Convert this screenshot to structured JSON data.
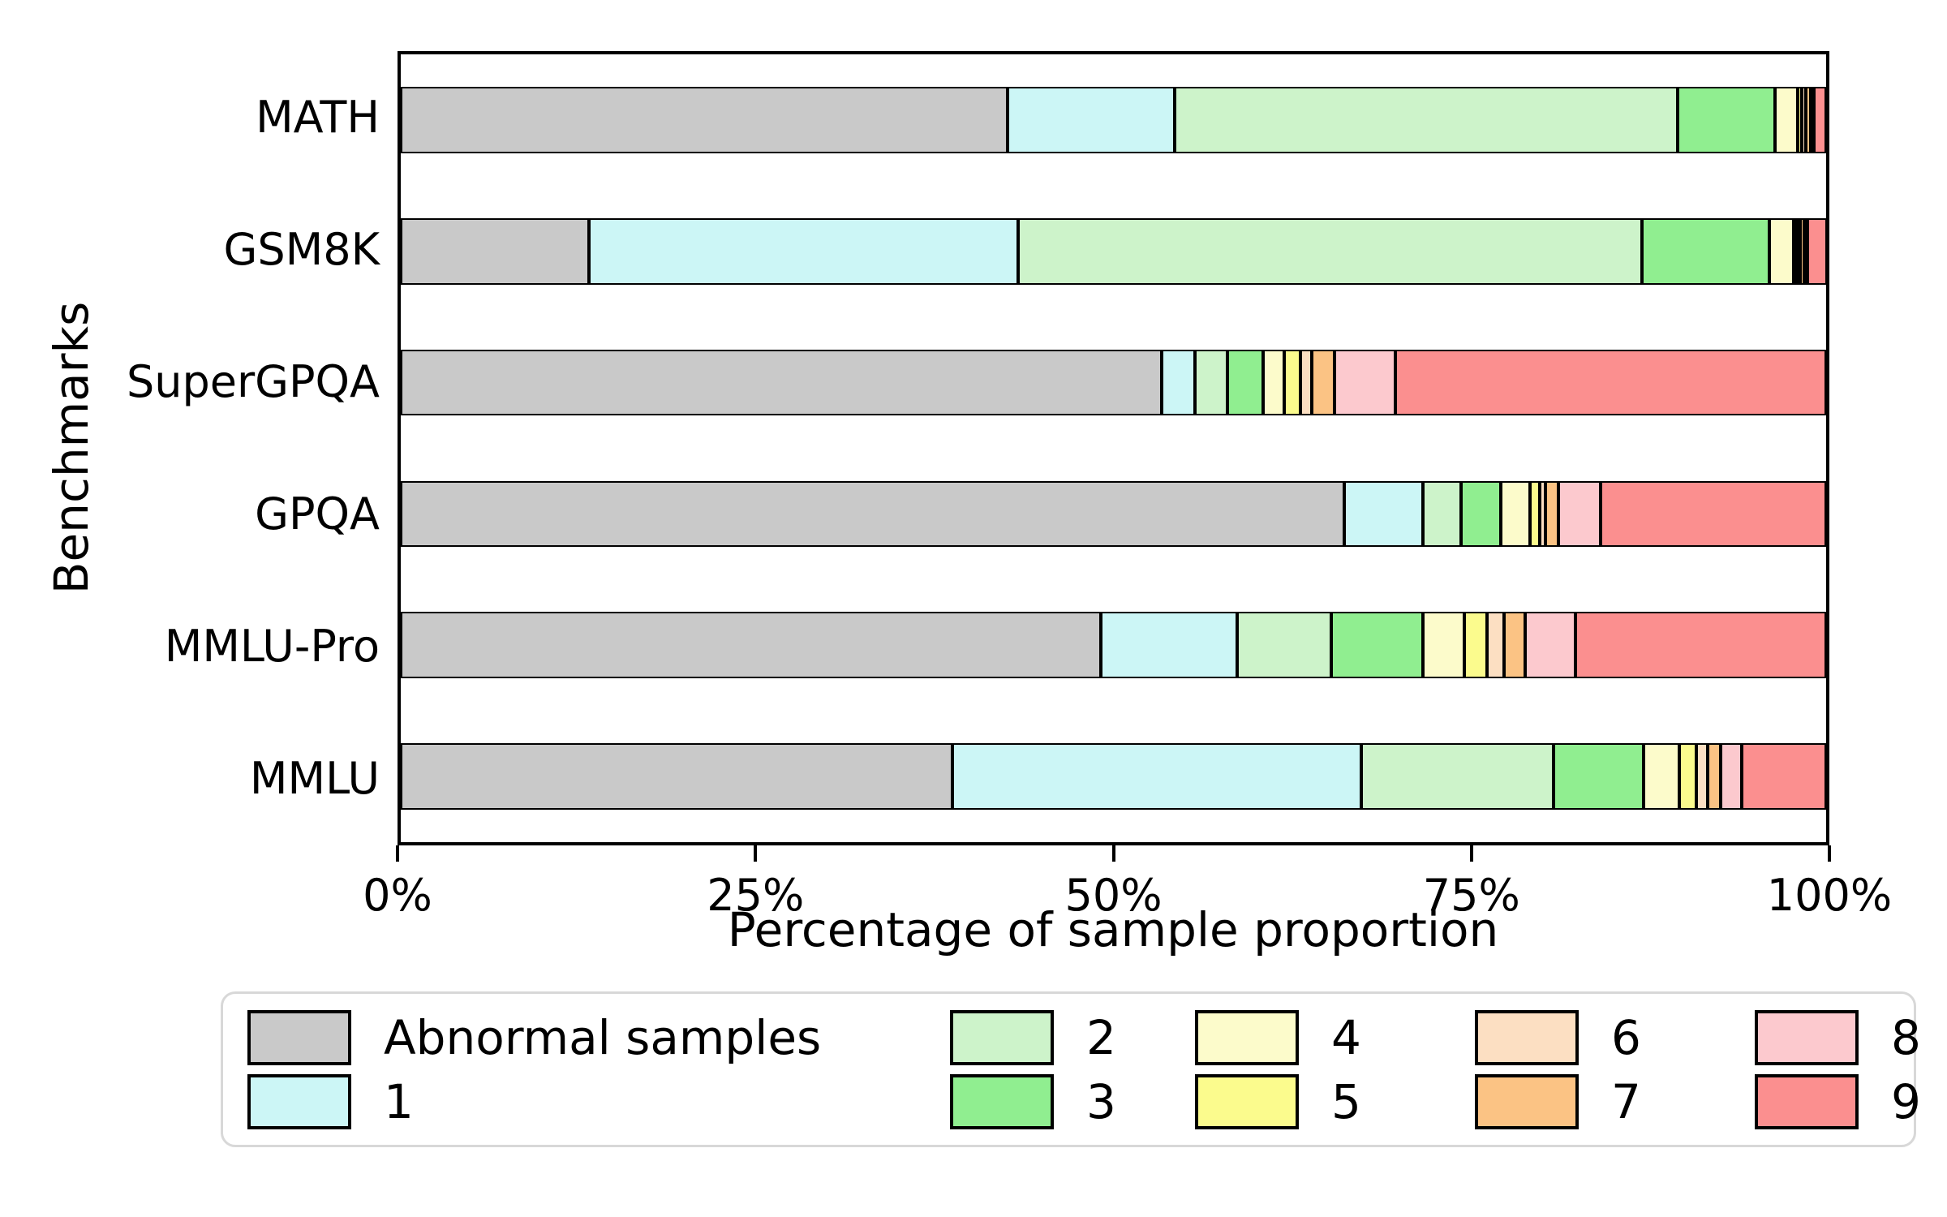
{
  "chart_data": {
    "type": "bar",
    "subtype": "horizontal-stacked",
    "xlabel": "Percentage of sample proportion",
    "ylabel": "Benchmarks",
    "xlim": [
      0,
      100
    ],
    "x_ticks": [
      "0%",
      "25%",
      "50%",
      "75%",
      "100%"
    ],
    "grid": false,
    "legend_position": "bottom",
    "legend_fill_order": "column-major-2-rows",
    "bar_edge_color": "#000000",
    "categories": [
      "MATH",
      "GSM8K",
      "SuperGPQA",
      "GPQA",
      "MMLU-Pro",
      "MMLU"
    ],
    "series": [
      {
        "name": "Abnormal samples",
        "color": "#C9C9C9",
        "values": [
          42.6,
          13.2,
          53.4,
          66.2,
          49.1,
          38.7
        ]
      },
      {
        "name": "1",
        "color": "#CCF6F6",
        "values": [
          11.7,
          30.1,
          2.3,
          5.5,
          9.6,
          28.7
        ]
      },
      {
        "name": "2",
        "color": "#CDF3CA",
        "values": [
          35.3,
          43.8,
          2.3,
          2.7,
          6.6,
          13.5
        ]
      },
      {
        "name": "3",
        "color": "#90EE90",
        "values": [
          6.8,
          8.9,
          2.5,
          2.8,
          6.4,
          6.3
        ]
      },
      {
        "name": "4",
        "color": "#FCFBCB",
        "values": [
          1.6,
          1.7,
          1.5,
          2.0,
          2.9,
          2.5
        ]
      },
      {
        "name": "5",
        "color": "#FBFB8D",
        "values": [
          0.3,
          0.2,
          1.1,
          0.7,
          1.6,
          1.2
        ]
      },
      {
        "name": "6",
        "color": "#FCDFC2",
        "values": [
          0.3,
          0.2,
          0.8,
          0.4,
          1.2,
          0.8
        ]
      },
      {
        "name": "7",
        "color": "#FBC384",
        "values": [
          0.3,
          0.3,
          1.6,
          0.9,
          1.5,
          0.9
        ]
      },
      {
        "name": "8",
        "color": "#FCC9CE",
        "values": [
          0.2,
          0.2,
          4.3,
          3.0,
          3.5,
          1.5
        ]
      },
      {
        "name": "9",
        "color": "#FB8F8F",
        "values": [
          0.9,
          1.4,
          30.2,
          15.8,
          17.6,
          5.9
        ]
      }
    ]
  }
}
